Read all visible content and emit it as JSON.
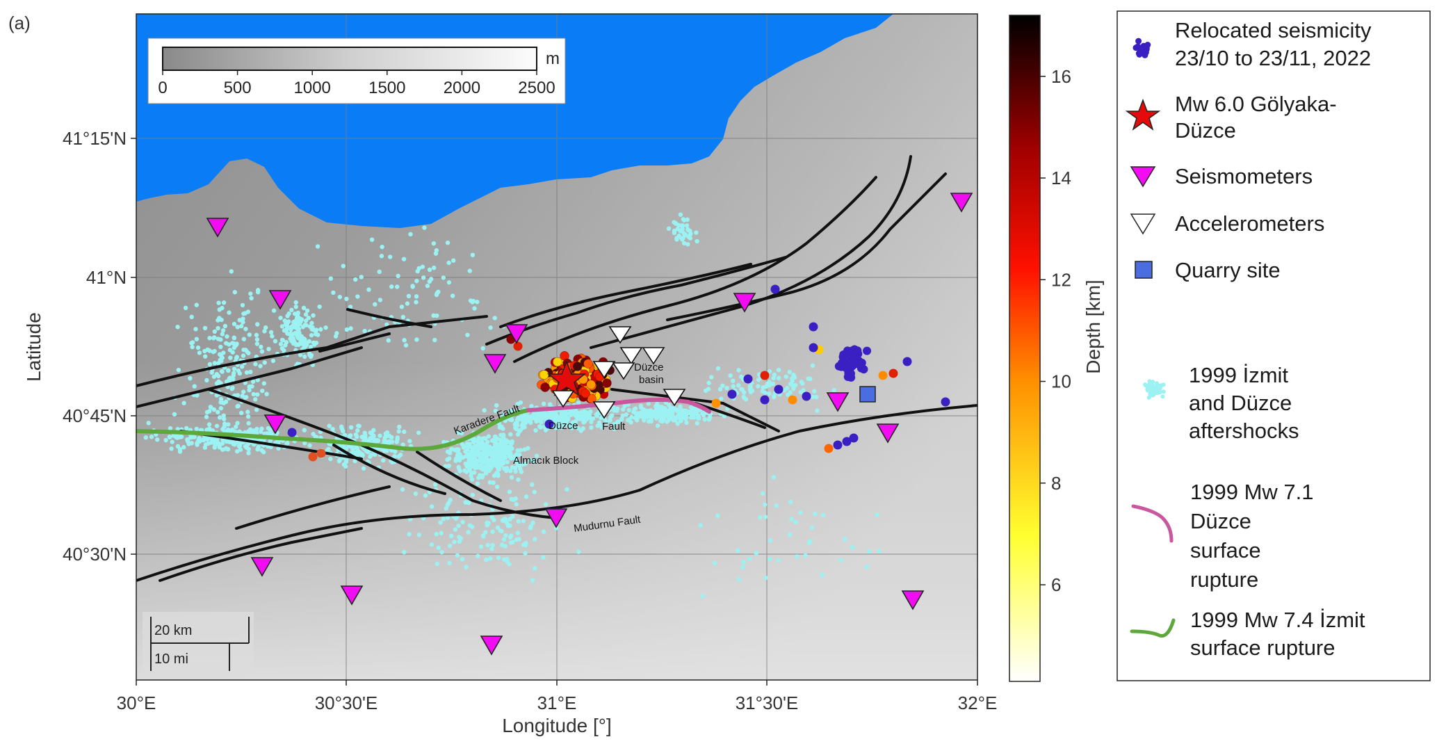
{
  "panel_label": "(a)",
  "axes": {
    "xlabel": "Longitude [°]",
    "ylabel": "Latitude",
    "x_ticks": [
      "30°E",
      "30°30'E",
      "31°E",
      "31°30'E",
      "32°E"
    ],
    "y_ticks": [
      "41°15'N",
      "41°N",
      "40°45'N",
      "40°30'N"
    ]
  },
  "elevation_bar": {
    "unit": "m",
    "ticks": [
      "0",
      "500",
      "1000",
      "1500",
      "2000",
      "2500"
    ]
  },
  "depth_colorbar": {
    "label": "Depth [km]",
    "ticks": [
      "6",
      "8",
      "10",
      "12",
      "14",
      "16"
    ]
  },
  "map_labels": {
    "karadere": "Karadere Fault",
    "duzce_basin_1": "Düzce",
    "duzce_basin_2": "basin",
    "duzce_town": "Düzce",
    "fault": "Fault",
    "almacik": "Almacık Block",
    "mudurnu": "Mudurnu Fault"
  },
  "scale": {
    "km": "20 km",
    "mi": "10 mi"
  },
  "legend": {
    "relocated_1": "Relocated seismicity",
    "relocated_2": "23/10 to 23/11, 2022",
    "mainshock_1": "Mw 6.0 Gölyaka-",
    "mainshock_2": "Düzce",
    "seismometers": "Seismometers",
    "accelerometers": "Accelerometers",
    "quarry": "Quarry site",
    "aftershocks_1": "1999 İzmit",
    "aftershocks_2": "and Düzce",
    "aftershocks_3": "aftershocks",
    "duzce_rupture_1": "1999 Mw 7.1",
    "duzce_rupture_2": "Düzce",
    "duzce_rupture_3": "surface",
    "duzce_rupture_4": "rupture",
    "izmit_rupture_1": "1999 Mw 7.4 İzmit",
    "izmit_rupture_2": "surface rupture"
  },
  "colors": {
    "sea": "#0a7cf5",
    "aftershock": "#9cf2f2",
    "relocated": "#3a1fc2",
    "seismometer": "#f20cf2",
    "duzce_rupture": "#c9579e",
    "izmit_rupture": "#5ca83a",
    "quarry": "#4a6ee0",
    "fault": "#111111"
  }
}
